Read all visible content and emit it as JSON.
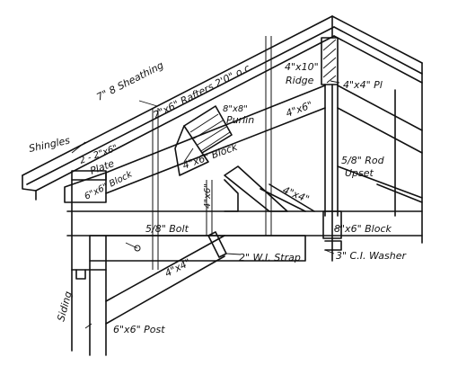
{
  "labels": {
    "sheathing": "7\" 8 Sheathing",
    "shingles": "Shingles",
    "rafters": "2\"x6\" Rafters 2'0\" o.c.",
    "purlin_size": "8\"x8\"",
    "purlin": "Purlin",
    "ridge_size": "4\"x10\"",
    "ridge": "Ridge",
    "pl": "4\"x4\" Pl",
    "member_4x6": "4\"x6\"",
    "plate_size": "2 - 2\"x6\"",
    "plate": "Plate",
    "block_6x6": "6\"x6\" Block",
    "block_4x6": "4\"x6\" Block",
    "rod_size": "5/8\" Rod",
    "rod_upset": "Upset",
    "post_4x6": "4\"x6\"",
    "brace_4x4_upper": "4\"x4\"",
    "bolt": "5/8\" Bolt",
    "block_8x6": "8\"x6\" Block",
    "strap": "2\" W.I. Strap",
    "washer": "3\" C.I. Washer",
    "brace_4x4_lower": "4\"x4\"",
    "siding": "Siding",
    "post_6x6": "6\"x6\" Post"
  }
}
